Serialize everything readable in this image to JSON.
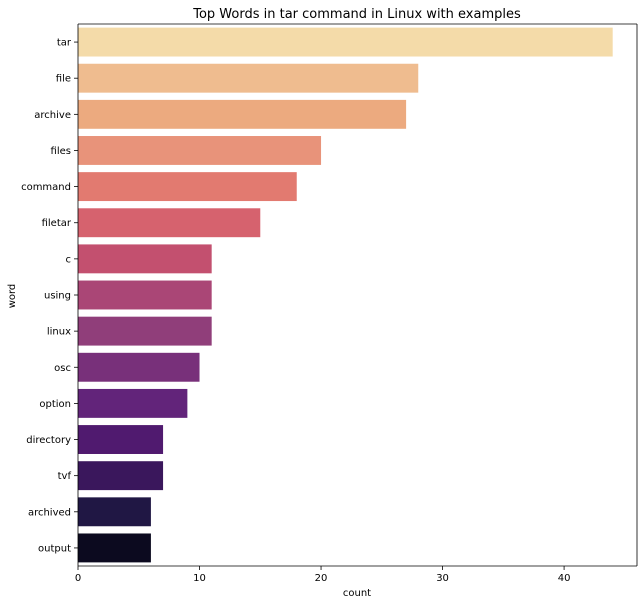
{
  "chart_data": {
    "type": "bar",
    "orientation": "horizontal",
    "title": "Top Words in tar command in Linux with examples",
    "xlabel": "count",
    "ylabel": "word",
    "xlim": [
      0,
      46
    ],
    "xticks": [
      0,
      10,
      20,
      30,
      40
    ],
    "grid": false,
    "categories": [
      "tar",
      "file",
      "archive",
      "files",
      "command",
      "filetar",
      "c",
      "using",
      "linux",
      "osc",
      "option",
      "directory",
      "tvf",
      "archived",
      "output"
    ],
    "values": [
      44,
      28,
      27,
      20,
      18,
      15,
      11,
      11,
      11,
      10,
      9,
      7,
      7,
      6,
      6
    ],
    "colors": [
      "#f4dba9",
      "#efbc8f",
      "#ecaa7f",
      "#e8937a",
      "#e27a70",
      "#d6626e",
      "#c3506f",
      "#aa4676",
      "#903e7a",
      "#78307a",
      "#62247a",
      "#501a6f",
      "#3a175c",
      "#201744",
      "#0c0a1f"
    ],
    "palette": "magma"
  }
}
